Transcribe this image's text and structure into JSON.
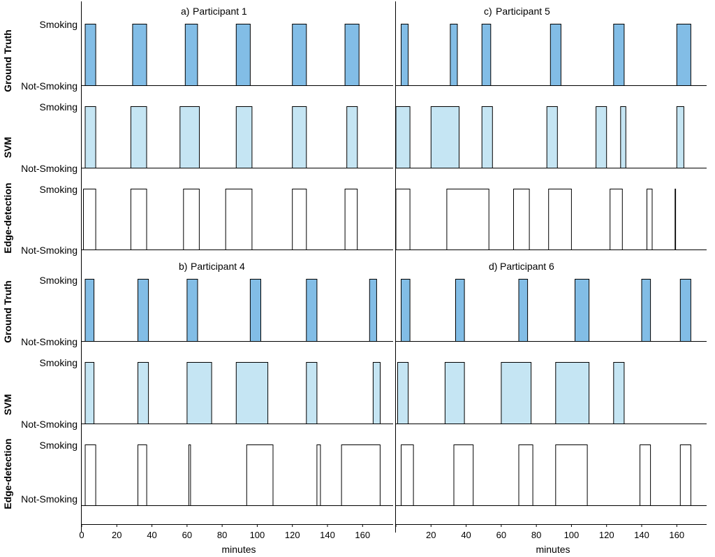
{
  "colors": {
    "gt": "#82BDE6",
    "svm": "#C5E5F3",
    "edge": "#FFFFFF",
    "stroke": "#000000"
  },
  "chart_data": {
    "type": "bar",
    "x_axis": {
      "label": "minutes",
      "xlim": [
        0,
        175
      ],
      "ticks": [
        0,
        20,
        40,
        60,
        80,
        100,
        120,
        140,
        160
      ],
      "tick_labels": [
        "0",
        "20",
        "40",
        "60",
        "80",
        "100",
        "120",
        "140",
        "160"
      ]
    },
    "y_levels": [
      "Not-Smoking",
      "Smoking"
    ],
    "row_labels": [
      "Ground Truth",
      "SVM",
      "Edge-detection"
    ],
    "panels": [
      {
        "id": "a",
        "marker": "a)",
        "title": "Participant 1",
        "series": [
          {
            "name": "Ground Truth",
            "intervals": [
              [
                2,
                8
              ],
              [
                29,
                37
              ],
              [
                59,
                66
              ],
              [
                88,
                96
              ],
              [
                120,
                128
              ],
              [
                150,
                158
              ]
            ]
          },
          {
            "name": "SVM",
            "intervals": [
              [
                2,
                8
              ],
              [
                28,
                37
              ],
              [
                56,
                67
              ],
              [
                88,
                97
              ],
              [
                120,
                128
              ],
              [
                151,
                157
              ]
            ]
          },
          {
            "name": "Edge-detection",
            "intervals": [
              [
                1,
                8
              ],
              [
                28,
                37
              ],
              [
                58,
                67
              ],
              [
                82,
                97
              ],
              [
                120,
                128
              ],
              [
                150,
                157
              ]
            ]
          }
        ]
      },
      {
        "id": "c",
        "marker": "c)",
        "title": "Participant 5",
        "series": [
          {
            "name": "Ground Truth",
            "intervals": [
              [
                3,
                7
              ],
              [
                31,
                35
              ],
              [
                49,
                54
              ],
              [
                88,
                94
              ],
              [
                124,
                130
              ],
              [
                160,
                168
              ]
            ]
          },
          {
            "name": "SVM",
            "intervals": [
              [
                0,
                8
              ],
              [
                20,
                36
              ],
              [
                49,
                55
              ],
              [
                86,
                92
              ],
              [
                114,
                120
              ],
              [
                128,
                131
              ],
              [
                160,
                164
              ]
            ]
          },
          {
            "name": "Edge-detection",
            "intervals": [
              [
                0,
                8
              ],
              [
                29,
                53
              ],
              [
                67,
                76
              ],
              [
                87,
                100
              ],
              [
                122,
                129
              ],
              [
                143,
                146
              ],
              [
                159,
                159
              ]
            ]
          }
        ]
      },
      {
        "id": "b",
        "marker": "b)",
        "title": "Participant 4",
        "series": [
          {
            "name": "Ground Truth",
            "intervals": [
              [
                2,
                7
              ],
              [
                32,
                38
              ],
              [
                60,
                66
              ],
              [
                96,
                102
              ],
              [
                128,
                134
              ],
              [
                164,
                168
              ]
            ]
          },
          {
            "name": "SVM",
            "intervals": [
              [
                2,
                7
              ],
              [
                32,
                38
              ],
              [
                60,
                74
              ],
              [
                88,
                106
              ],
              [
                128,
                134
              ],
              [
                166,
                170
              ]
            ]
          },
          {
            "name": "Edge-detection",
            "intervals": [
              [
                2,
                8
              ],
              [
                32,
                37
              ],
              [
                61,
                62
              ],
              [
                94,
                109
              ],
              [
                134,
                136
              ],
              [
                148,
                170
              ]
            ]
          }
        ]
      },
      {
        "id": "d",
        "marker": "d)",
        "title": "Participant 6",
        "series": [
          {
            "name": "Ground Truth",
            "intervals": [
              [
                3,
                8
              ],
              [
                34,
                39
              ],
              [
                70,
                75
              ],
              [
                102,
                110
              ],
              [
                140,
                145
              ],
              [
                162,
                168
              ]
            ]
          },
          {
            "name": "SVM",
            "intervals": [
              [
                1,
                7
              ],
              [
                28,
                39
              ],
              [
                60,
                77
              ],
              [
                91,
                110
              ],
              [
                124,
                130
              ]
            ]
          },
          {
            "name": "Edge-detection",
            "intervals": [
              [
                3,
                10
              ],
              [
                33,
                44
              ],
              [
                70,
                78
              ],
              [
                91,
                109
              ],
              [
                139,
                145
              ],
              [
                162,
                168
              ]
            ]
          }
        ]
      }
    ]
  }
}
